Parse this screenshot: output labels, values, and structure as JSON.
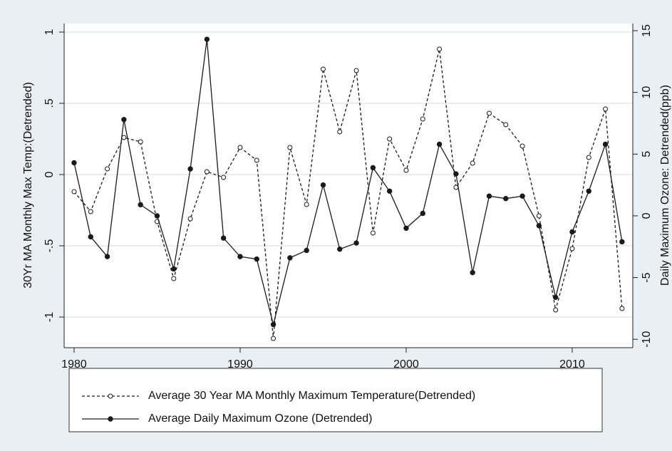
{
  "chart_data": {
    "type": "line",
    "ylabel": "30Yr MA Monthly Max Temp:(Detrended)",
    "y2label": "Daily Maximum Ozone: Detrended(ppb)",
    "x": [
      1980,
      1981,
      1982,
      1983,
      1984,
      1985,
      1986,
      1987,
      1988,
      1989,
      1990,
      1991,
      1992,
      1993,
      1994,
      1995,
      1996,
      1997,
      1998,
      1999,
      2000,
      2001,
      2002,
      2003,
      2004,
      2005,
      2006,
      2007,
      2008,
      2009,
      2010,
      2011,
      2012,
      2013
    ],
    "xlim": [
      1979.4,
      2013.65
    ],
    "xticks": [
      1980,
      1990,
      2000,
      2010
    ],
    "ylim": [
      -1.215,
      1.06
    ],
    "yticks": [
      {
        "value": -1,
        "label": "-1"
      },
      {
        "value": -0.5,
        "label": "-.5"
      },
      0,
      {
        "value": 0.5,
        "label": ".5"
      },
      1
    ],
    "y2lim": [
      -10.68,
      15.58
    ],
    "y2ticks": [
      -10,
      -5,
      0,
      5,
      10,
      15
    ],
    "grid": true,
    "legend": "bottom",
    "series": [
      {
        "name": "Average 30 Year MA Monthly Maximum Temperature(Detrended)",
        "color": "#1a1a1a",
        "line_style": "dashed",
        "marker": "hollow",
        "values": [
          -0.12,
          -0.26,
          0.04,
          0.26,
          0.23,
          -0.33,
          -0.73,
          -0.31,
          0.02,
          -0.02,
          0.19,
          0.1,
          -1.15,
          0.19,
          -0.21,
          0.74,
          0.3,
          0.73,
          -0.41,
          0.25,
          0.03,
          0.39,
          0.88,
          -0.09,
          0.08,
          0.43,
          0.35,
          0.2,
          -0.29,
          -0.95,
          -0.52,
          0.12,
          0.46,
          -0.94
        ]
      },
      {
        "name": "Average Daily Maximum Ozone (Detrended)",
        "color": "#1a1a1a",
        "line_style": "solid",
        "marker": "filled",
        "axis": "y2",
        "values": [
          4.3,
          -1.7,
          -3.3,
          7.8,
          0.9,
          0,
          -4.3,
          3.8,
          14.3,
          -1.8,
          -3.3,
          -3.5,
          -8.8,
          -3.4,
          -2.8,
          2.5,
          -2.7,
          -2.2,
          3.9,
          2.0,
          -1.0,
          0.2,
          5.8,
          3.4,
          -4.6,
          1.6,
          1.4,
          1.6,
          -0.8,
          -6.6,
          -1.3,
          2.0,
          5.8,
          -2.1
        ]
      }
    ]
  }
}
